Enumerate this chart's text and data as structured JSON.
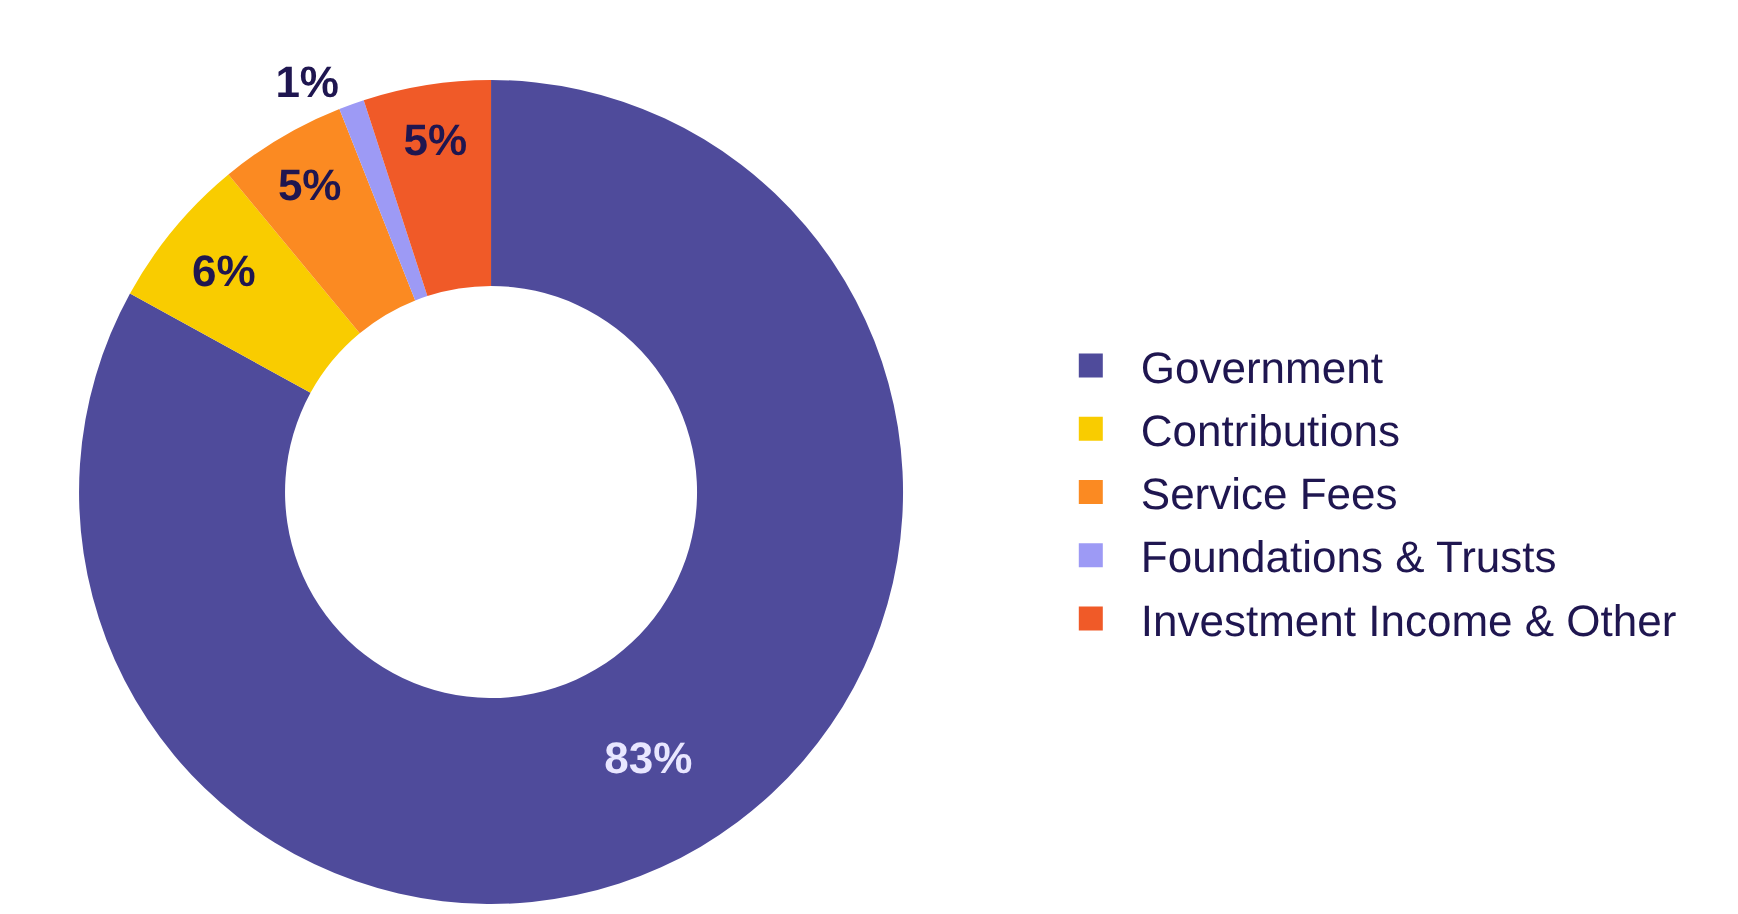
{
  "chart_data": {
    "type": "donut",
    "categories": [
      "Government",
      "Contributions",
      "Service Fees",
      "Foundations & Trusts",
      "Investment Income & Other"
    ],
    "values": [
      83,
      6,
      5,
      1,
      5
    ],
    "colors": [
      "#4f4b9b",
      "#f9cc00",
      "#fb8a22",
      "#9d9af5",
      "#f05a28"
    ],
    "value_labels": [
      "83%",
      "6%",
      "5%",
      "1%",
      "5%"
    ],
    "legend": "right"
  }
}
